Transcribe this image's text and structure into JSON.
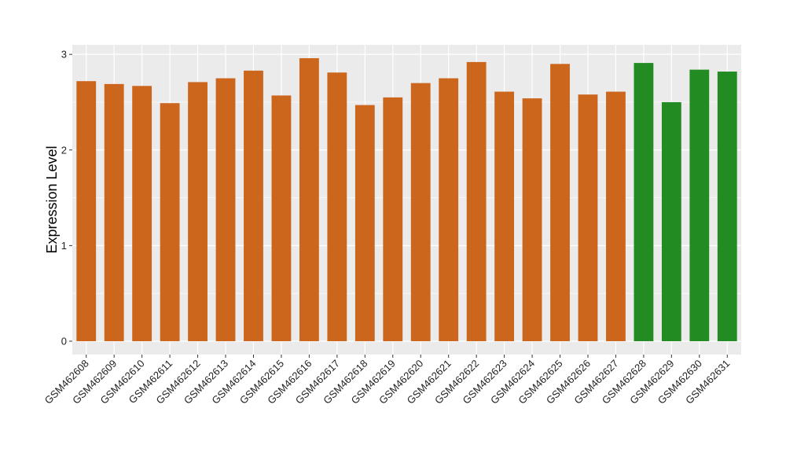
{
  "chart_data": {
    "type": "bar",
    "title": "",
    "xlabel": "",
    "ylabel": "Expression Level",
    "ylim": [
      -0.14,
      3.1
    ],
    "yticks": [
      0,
      1,
      2,
      3
    ],
    "grid": true,
    "legend": "none",
    "categories": [
      "GSM462608",
      "GSM462609",
      "GSM462610",
      "GSM462611",
      "GSM462612",
      "GSM462613",
      "GSM462614",
      "GSM462615",
      "GSM462616",
      "GSM462617",
      "GSM462618",
      "GSM462619",
      "GSM462620",
      "GSM462621",
      "GSM462622",
      "GSM462623",
      "GSM462624",
      "GSM462625",
      "GSM462626",
      "GSM462627",
      "GSM462628",
      "GSM462629",
      "GSM462630",
      "GSM462631"
    ],
    "values": [
      2.72,
      2.69,
      2.67,
      2.49,
      2.71,
      2.75,
      2.83,
      2.57,
      2.96,
      2.81,
      2.47,
      2.55,
      2.7,
      2.75,
      2.92,
      2.61,
      2.54,
      2.9,
      2.58,
      2.61,
      2.91,
      2.5,
      2.84,
      2.82
    ],
    "bar_groups": [
      "orange",
      "orange",
      "orange",
      "orange",
      "orange",
      "orange",
      "orange",
      "orange",
      "orange",
      "orange",
      "orange",
      "orange",
      "orange",
      "orange",
      "orange",
      "orange",
      "orange",
      "orange",
      "orange",
      "orange",
      "green",
      "green",
      "green",
      "green"
    ],
    "colors": {
      "orange": "#CD661D",
      "green": "#228B22",
      "panel_bg": "#EBEBEB",
      "grid": "#FFFFFF"
    }
  }
}
